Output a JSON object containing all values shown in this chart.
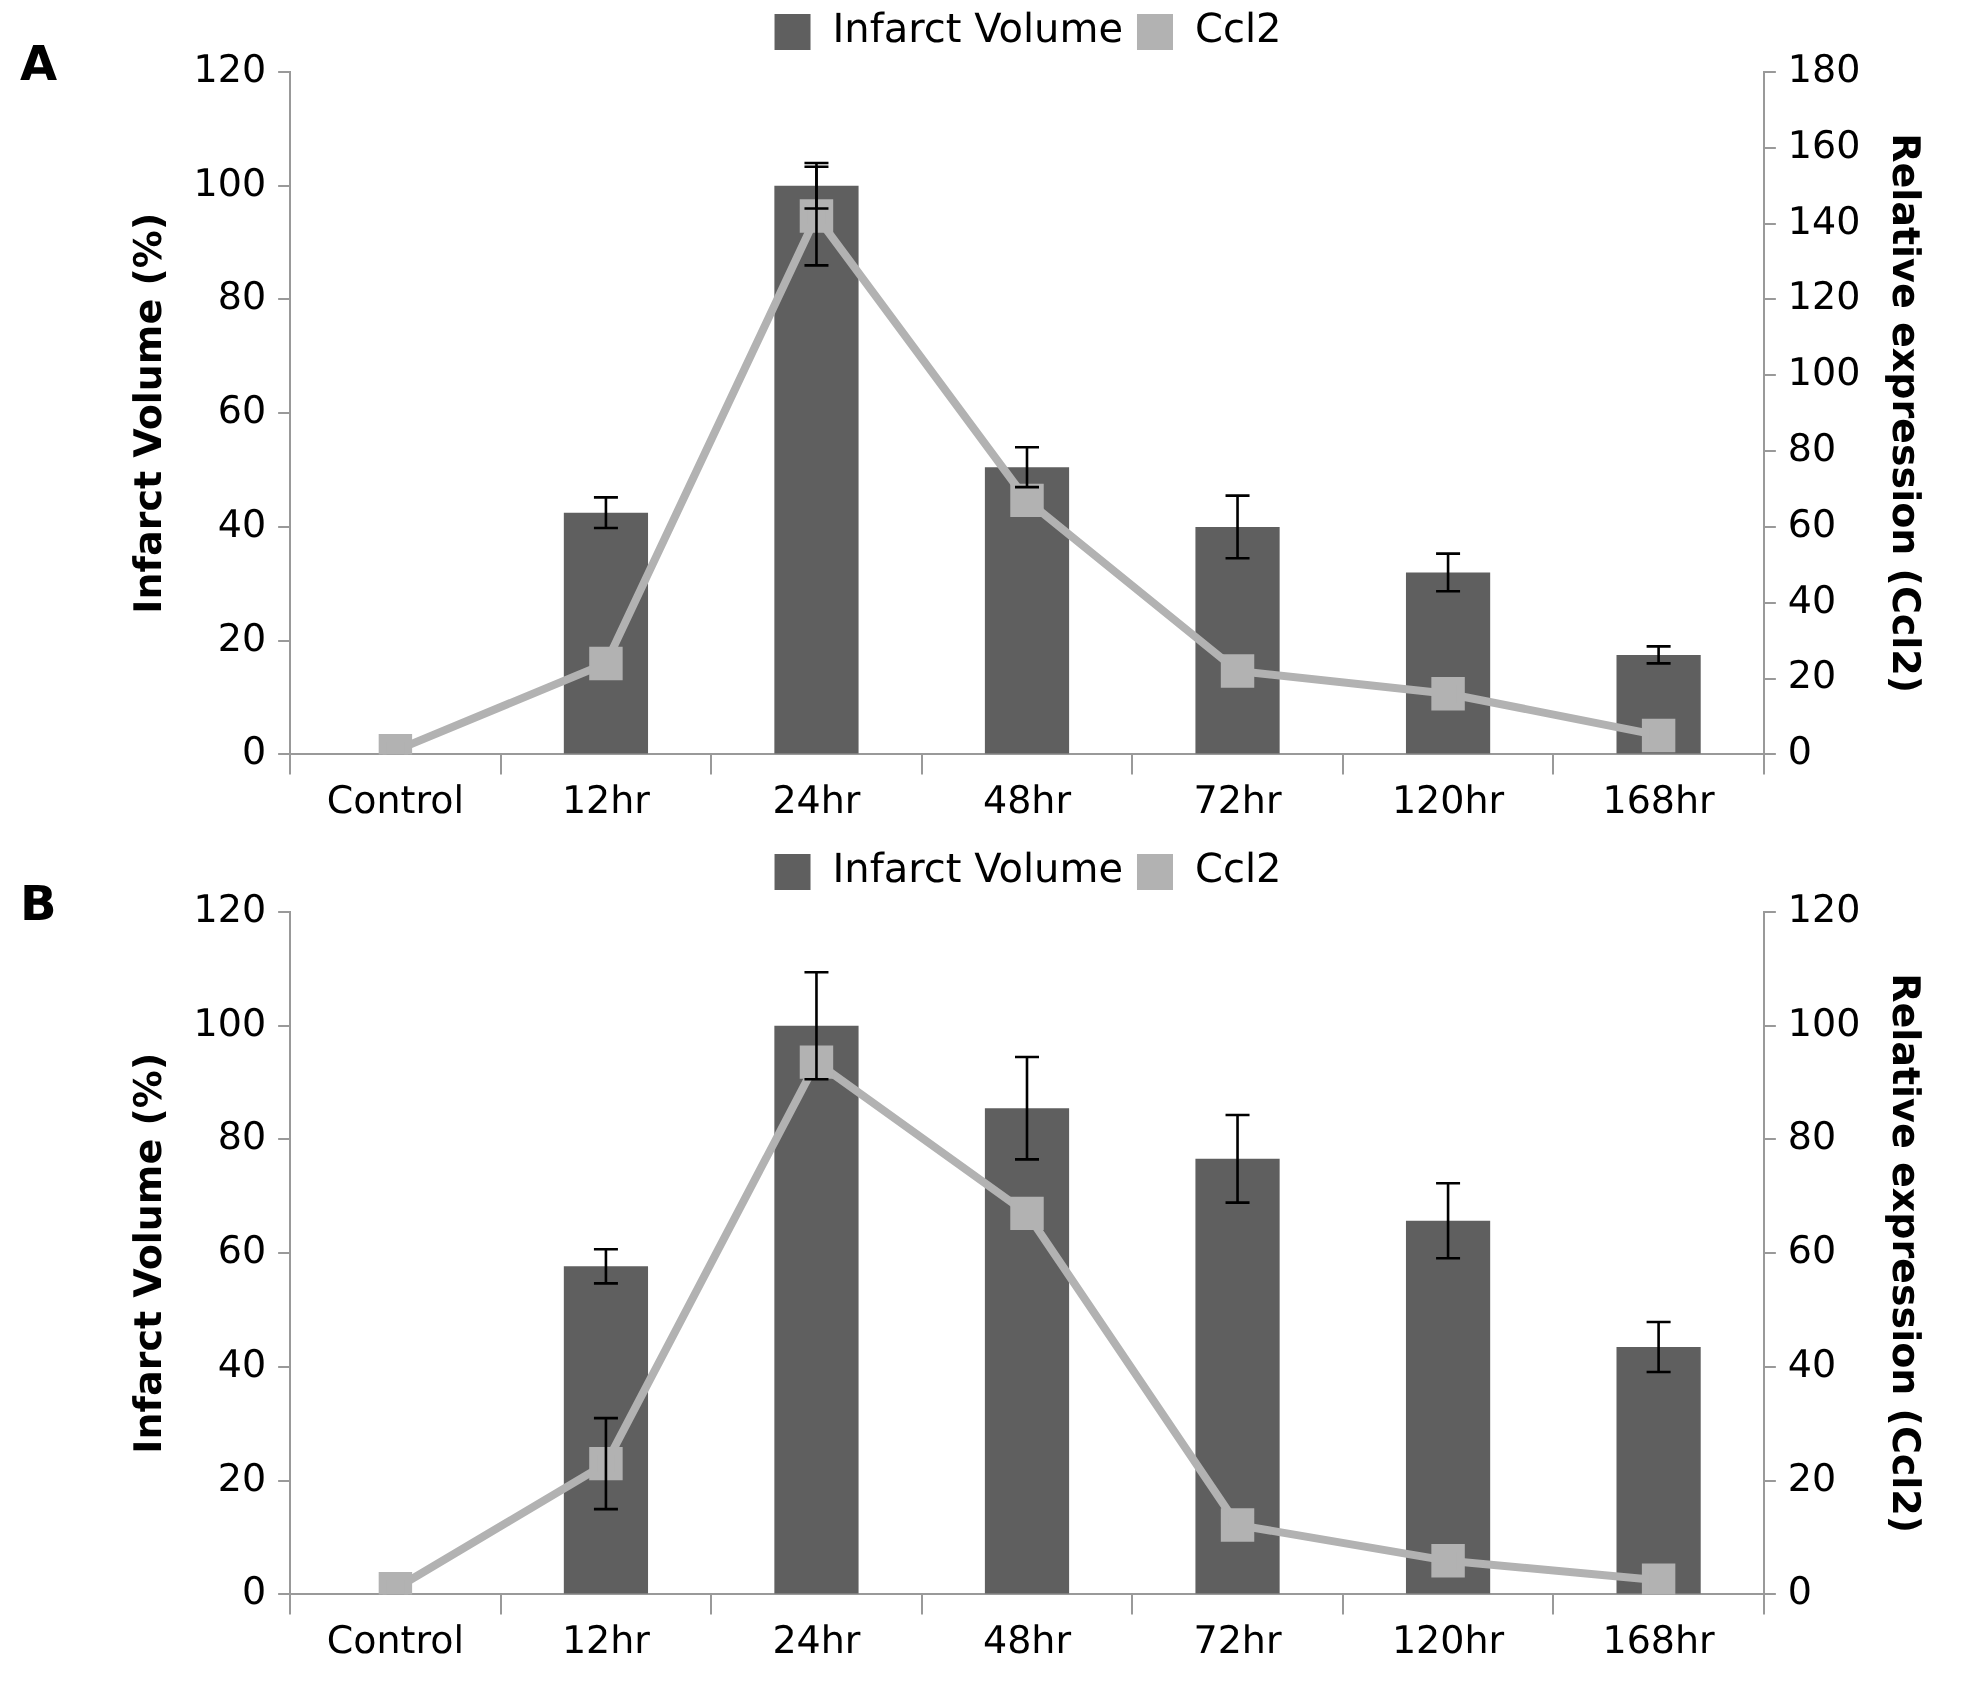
{
  "chart_data": [
    {
      "type": "bar",
      "title": "A",
      "categories": [
        "Control",
        "12hr",
        "24hr",
        "48hr",
        "72hr",
        "120hr",
        "168hr"
      ],
      "ylabel": "Infarct Volume (%)",
      "y2label": "Relative expression (Ccl2)",
      "ylim": [
        0,
        120
      ],
      "yticks": [
        0,
        20,
        40,
        60,
        80,
        100,
        120
      ],
      "y2lim": [
        0,
        180
      ],
      "y2ticks": [
        0,
        20,
        40,
        60,
        80,
        100,
        120,
        140,
        160,
        180
      ],
      "legend": "top",
      "grid": false,
      "marker": "square",
      "series": [
        {
          "name": "Infarct Volume",
          "color": "#5f5f5f",
          "values": [
            null,
            42.5,
            100,
            50.5,
            40,
            32,
            17.5
          ],
          "errors": [
            null,
            2.7,
            4,
            3.5,
            5.5,
            3.3,
            1.5
          ]
        },
        {
          "name": "Ccl2",
          "type": "line",
          "axis": "y2",
          "color": "#b2b2b2",
          "values": [
            1,
            24,
            142,
            67,
            22,
            16,
            5
          ],
          "errors": [
            null,
            null,
            13,
            null,
            null,
            null,
            null
          ]
        }
      ]
    },
    {
      "type": "bar",
      "title": "B",
      "categories": [
        "Control",
        "12hr",
        "24hr",
        "48hr",
        "72hr",
        "120hr",
        "168hr"
      ],
      "ylabel": "Infarct Volume (%)",
      "y2label": "Relative expression (Ccl2)",
      "ylim": [
        0,
        120
      ],
      "yticks": [
        0,
        20,
        40,
        60,
        80,
        100,
        120
      ],
      "y2lim": [
        0,
        120
      ],
      "y2ticks": [
        0,
        20,
        40,
        60,
        80,
        100,
        120
      ],
      "legend": "top",
      "grid": false,
      "marker": "square",
      "series": [
        {
          "name": "Infarct Volume",
          "color": "#5f5f5f",
          "values": [
            null,
            57.7,
            100,
            85.5,
            76.6,
            65.7,
            43.5
          ],
          "errors": [
            null,
            3,
            9.4,
            9,
            7.7,
            6.6,
            4.4
          ]
        },
        {
          "name": "Ccl2",
          "type": "line",
          "axis": "y2",
          "color": "#b2b2b2",
          "values": [
            1,
            23,
            93.6,
            67,
            12.2,
            5.9,
            2.5
          ],
          "errors": [
            null,
            8,
            null,
            null,
            null,
            null,
            null
          ]
        }
      ]
    }
  ]
}
